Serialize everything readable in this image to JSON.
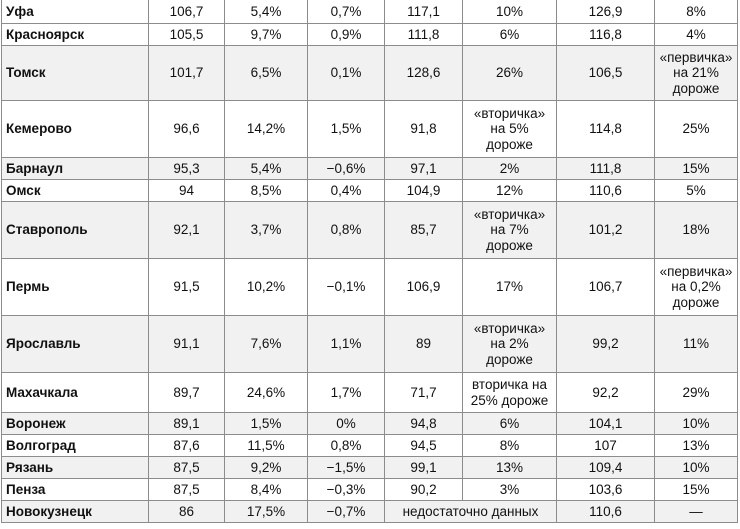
{
  "table": {
    "rows": [
      {
        "city": "Уфа",
        "c1": "106,7",
        "c2": "5,4%",
        "c3": "0,7%",
        "c4": "117,1",
        "c5": "10%",
        "c6": "126,9",
        "c7": "8%"
      },
      {
        "city": "Красноярск",
        "c1": "105,5",
        "c2": "9,7%",
        "c3": "0,9%",
        "c4": "111,8",
        "c5": "6%",
        "c6": "116,8",
        "c7": "4%"
      },
      {
        "city": "Томск",
        "c1": "101,7",
        "c2": "6,5%",
        "c3": "0,1%",
        "c4": "128,6",
        "c5": "26%",
        "c6": "106,5",
        "c7": "«первичка» на 21% дороже"
      },
      {
        "city": "Кемерово",
        "c1": "96,6",
        "c2": "14,2%",
        "c3": "1,5%",
        "c4": "91,8",
        "c5": "«вторичка» на 5% дороже",
        "c6": "114,8",
        "c7": "25%"
      },
      {
        "city": "Барнаул",
        "c1": "95,3",
        "c2": "5,4%",
        "c3": "−0,6%",
        "c4": "97,1",
        "c5": "2%",
        "c6": "111,8",
        "c7": "15%"
      },
      {
        "city": "Омск",
        "c1": "94",
        "c2": "8,5%",
        "c3": "0,4%",
        "c4": "104,9",
        "c5": "12%",
        "c6": "110,6",
        "c7": "5%"
      },
      {
        "city": "Ставрополь",
        "c1": "92,1",
        "c2": "3,7%",
        "c3": "0,8%",
        "c4": "85,7",
        "c5": "«вторичка» на 7% дороже",
        "c6": "101,2",
        "c7": "18%"
      },
      {
        "city": "Пермь",
        "c1": "91,5",
        "c2": "10,2%",
        "c3": "−0,1%",
        "c4": "106,9",
        "c5": "17%",
        "c6": "106,7",
        "c7": "«первичка» на 0,2% дороже"
      },
      {
        "city": "Ярославль",
        "c1": "91,1",
        "c2": "7,6%",
        "c3": "1,1%",
        "c4": "89",
        "c5": "«вторичка» на 2% дороже",
        "c6": "99,2",
        "c7": "11%"
      },
      {
        "city": "Махачкала",
        "c1": "89,7",
        "c2": "24,6%",
        "c3": "1,7%",
        "c4": "71,7",
        "c5": "вторичка на 25% дороже",
        "c6": "92,2",
        "c7": "29%"
      },
      {
        "city": "Воронеж",
        "c1": "89,1",
        "c2": "1,5%",
        "c3": "0%",
        "c4": "94,8",
        "c5": "6%",
        "c6": "104,1",
        "c7": "10%"
      },
      {
        "city": "Волгоград",
        "c1": "87,6",
        "c2": "11,5%",
        "c3": "0,8%",
        "c4": "94,5",
        "c5": "8%",
        "c6": "107",
        "c7": "13%"
      },
      {
        "city": "Рязань",
        "c1": "87,5",
        "c2": "9,2%",
        "c3": "−1,5%",
        "c4": "99,1",
        "c5": "13%",
        "c6": "109,4",
        "c7": "10%"
      },
      {
        "city": "Пенза",
        "c1": "87,5",
        "c2": "8,4%",
        "c3": "−0,3%",
        "c4": "90,2",
        "c5": "3%",
        "c6": "103,6",
        "c7": "15%"
      },
      {
        "city": "Новокузнецк",
        "c1": "86",
        "c2": "17,5%",
        "c3": "−0,7%",
        "c45": "недостаточно данных",
        "c6": "110,6",
        "c7": "—"
      }
    ]
  }
}
